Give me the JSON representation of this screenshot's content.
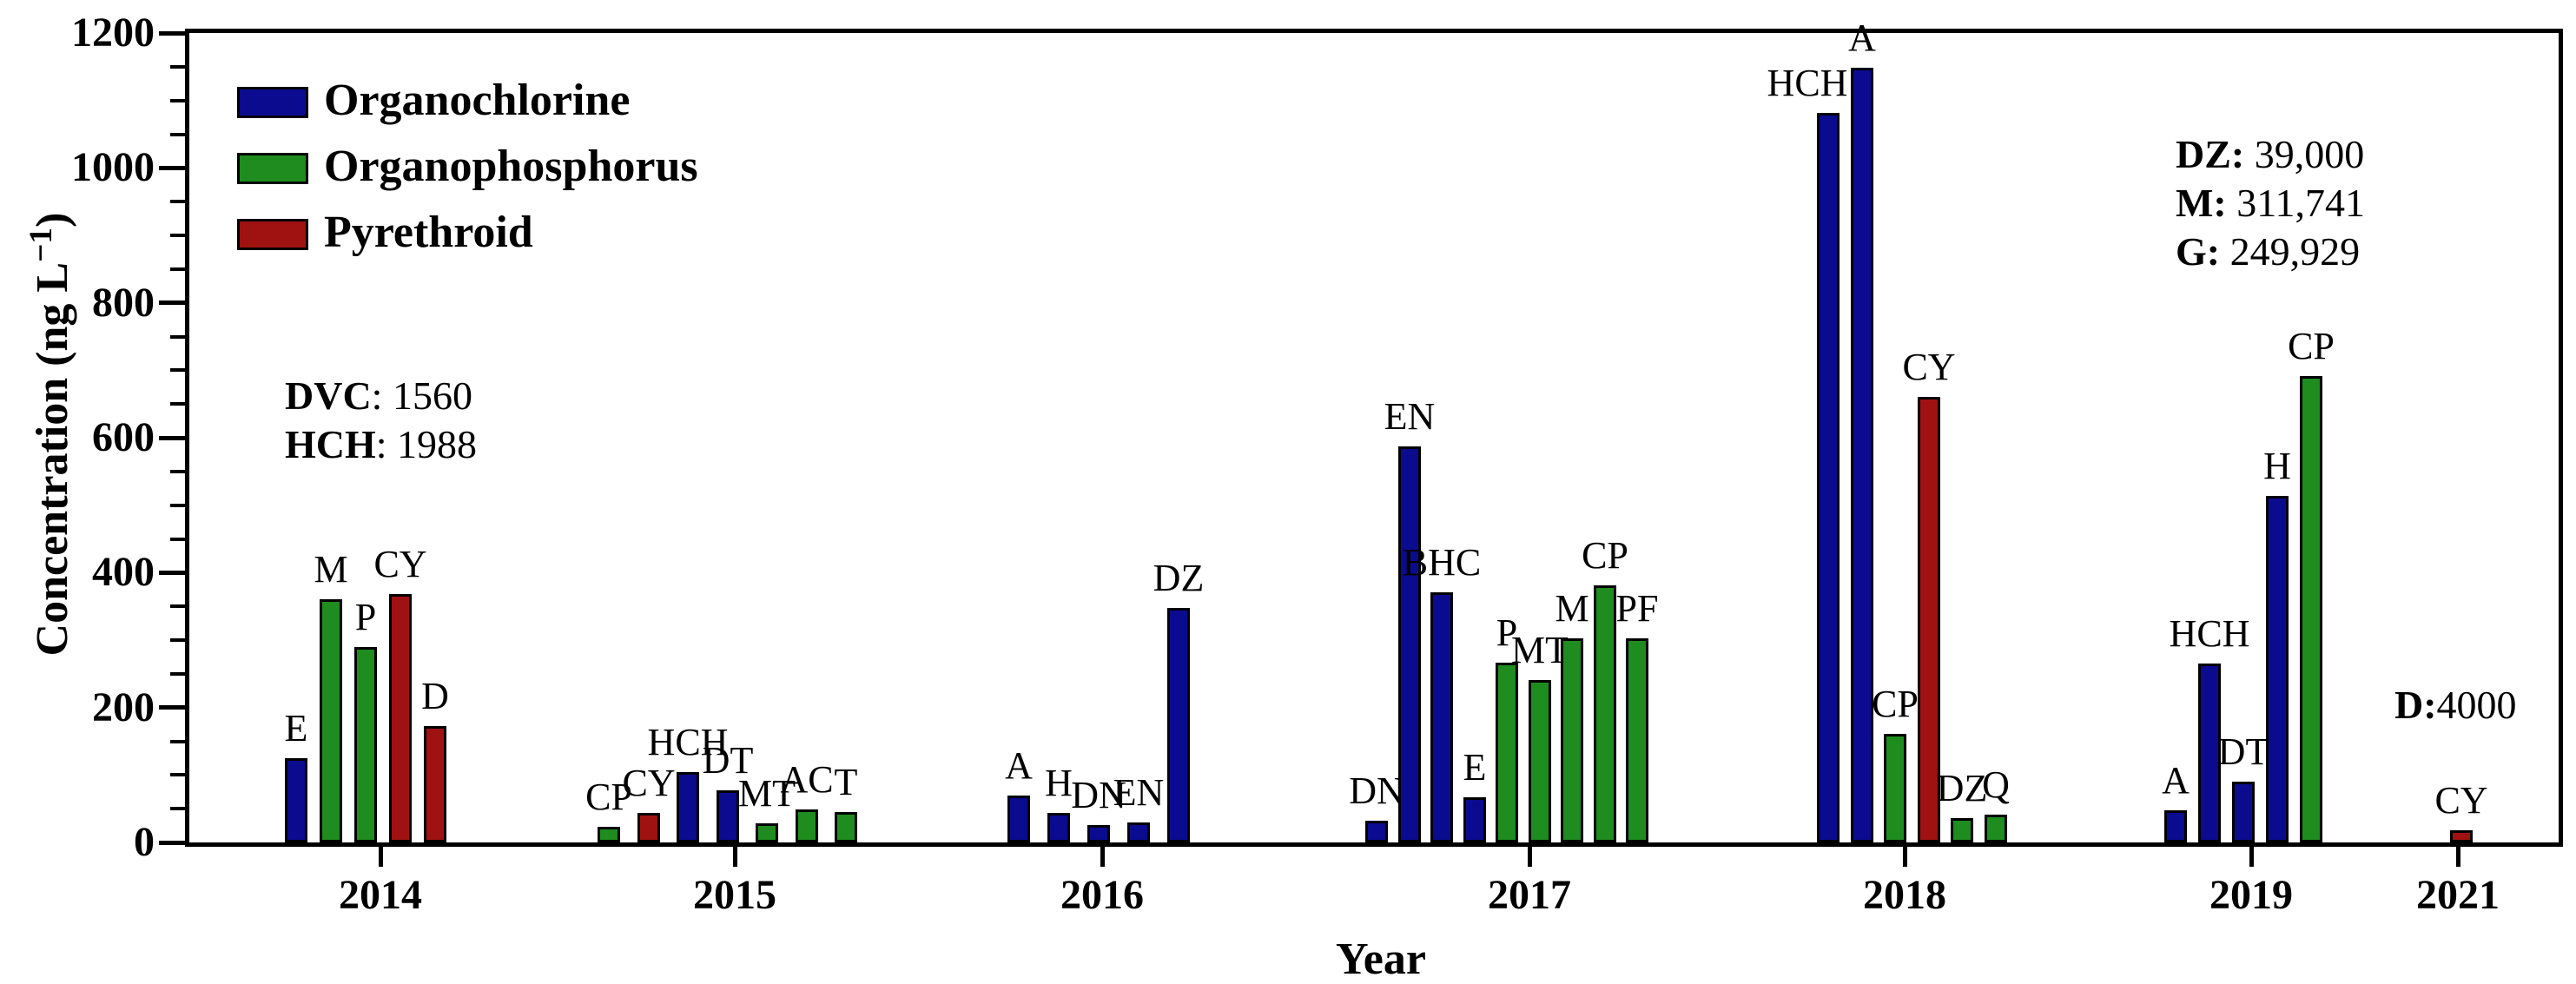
{
  "figure": {
    "y_axis": {
      "title_pre": "Concentration (ng L",
      "title_sup": "−1",
      "title_post": ")",
      "tick_labels": [
        "0",
        "200",
        "400",
        "600",
        "800",
        "1000",
        "1200"
      ]
    },
    "x_axis": {
      "title": "Year"
    }
  },
  "chart_data": {
    "type": "bar",
    "title": "",
    "xlabel": "Year",
    "ylabel": "Concentration (ng L−1)",
    "ylim": [
      0,
      1200
    ],
    "y_major_step": 200,
    "y_minor_step": 50,
    "grid": false,
    "legend_position": "top-left-inside",
    "legend": [
      {
        "name": "Organochlorine",
        "color": "#0b0b8f"
      },
      {
        "name": "Organophosphorus",
        "color": "#1e8c1e"
      },
      {
        "name": "Pyrethroid",
        "color": "#a01212"
      }
    ],
    "groups": [
      {
        "year": "2014",
        "layout": {
          "tick_x": 220,
          "start_x": 123,
          "spacing": 40
        },
        "bars": [
          {
            "label": "E",
            "category": "Organochlorine",
            "value": 125
          },
          {
            "label": "M",
            "category": "Organophosphorus",
            "value": 360
          },
          {
            "label": "P",
            "category": "Organophosphorus",
            "value": 290
          },
          {
            "label": "CY",
            "category": "Pyrethroid",
            "value": 368
          },
          {
            "label": "D",
            "category": "Pyrethroid",
            "value": 172
          }
        ]
      },
      {
        "year": "2015",
        "layout": {
          "tick_x": 628,
          "start_x": 483,
          "spacing": 45.5
        },
        "bars": [
          {
            "label": "CP",
            "category": "Organophosphorus",
            "value": 23
          },
          {
            "label": "CY",
            "category": "Pyrethroid",
            "value": 44
          },
          {
            "label": "HCH",
            "category": "Organochlorine",
            "value": 104
          },
          {
            "label": "DT",
            "category": "Organochlorine",
            "value": 77
          },
          {
            "label": "MT",
            "category": "Organophosphorus",
            "value": 28
          },
          {
            "label": "AC",
            "category": "Organophosphorus",
            "value": 49
          },
          {
            "label": "T",
            "category": "Organophosphorus",
            "value": 45
          }
        ]
      },
      {
        "year": "2016",
        "layout": {
          "tick_x": 1051,
          "start_x": 955,
          "spacing": 46
        },
        "bars": [
          {
            "label": "A",
            "category": "Organochlorine",
            "value": 70
          },
          {
            "label": "H",
            "category": "Organochlorine",
            "value": 44
          },
          {
            "label": "DN",
            "category": "Organochlorine",
            "value": 26
          },
          {
            "label": "EN",
            "category": "Organochlorine",
            "value": 30
          },
          {
            "label": "DZ",
            "category": "Organochlorine",
            "value": 347
          }
        ]
      },
      {
        "year": "2017",
        "layout": {
          "tick_x": 1543,
          "start_x": 1367,
          "spacing": 37.5
        },
        "bars": [
          {
            "label": "DN",
            "category": "Organochlorine",
            "value": 32
          },
          {
            "label": "EN",
            "category": "Organochlorine",
            "value": 587
          },
          {
            "label": "BHC",
            "category": "Organochlorine",
            "value": 371
          },
          {
            "label": "E",
            "category": "Organochlorine",
            "value": 67
          },
          {
            "label": "P",
            "category": "Organophosphorus",
            "value": 267
          },
          {
            "label": "MT",
            "category": "Organophosphorus",
            "value": 241
          },
          {
            "label": "M",
            "category": "Organophosphorus",
            "value": 302
          },
          {
            "label": "CP",
            "category": "Organophosphorus",
            "value": 381
          },
          {
            "label": "PF",
            "category": "Organophosphorus",
            "value": 302
          }
        ]
      },
      {
        "year": "2018",
        "layout": {
          "tick_x": 1975,
          "start_x": 1887,
          "spacing": 38.5
        },
        "bars": [
          {
            "label": "HCH",
            "category": "Organochlorine",
            "value": 1081,
            "label_dx": -24
          },
          {
            "label": "A",
            "category": "Organochlorine",
            "value": 1149
          },
          {
            "label": "CP",
            "category": "Organophosphorus",
            "value": 161
          },
          {
            "label": "CY",
            "category": "Pyrethroid",
            "value": 661
          },
          {
            "label": "DZ",
            "category": "Organophosphorus",
            "value": 36
          },
          {
            "label": "Q",
            "category": "Organophosphorus",
            "value": 41
          }
        ]
      },
      {
        "year": "2019",
        "layout": {
          "tick_x": 2374,
          "start_x": 2287,
          "spacing": 39
        },
        "bars": [
          {
            "label": "A",
            "category": "Organochlorine",
            "value": 47
          },
          {
            "label": "HCH",
            "category": "Organochlorine",
            "value": 265
          },
          {
            "label": "DT",
            "category": "Organochlorine",
            "value": 90
          },
          {
            "label": "H",
            "category": "Organochlorine",
            "value": 514
          },
          {
            "label": "CP",
            "category": "Organophosphorus",
            "value": 692
          }
        ]
      },
      {
        "year": "2021",
        "layout": {
          "tick_x": 2612,
          "start_x": 2616,
          "spacing": 0
        },
        "bars": [
          {
            "label": "CY",
            "category": "Pyrethroid",
            "value": 18
          }
        ]
      }
    ],
    "annotations": [
      {
        "name": "offscale-note-2014",
        "x": 328,
        "y": 428,
        "lines": [
          {
            "b": "DVC",
            "r": ": 1560"
          },
          {
            "b": "HCH",
            "r": ": 1988"
          }
        ]
      },
      {
        "name": "offscale-note-2018",
        "x": 2505,
        "y": 150,
        "lines": [
          {
            "b": "DZ:",
            "r": "  39,000"
          },
          {
            "b": "M:",
            "r": " 311,741"
          },
          {
            "b": "G:",
            "r": "  249,929"
          }
        ]
      },
      {
        "name": "offscale-note-2021",
        "x": 2757,
        "y": 784,
        "lines": [
          {
            "b": "D:",
            "r": "4000"
          }
        ]
      }
    ]
  }
}
